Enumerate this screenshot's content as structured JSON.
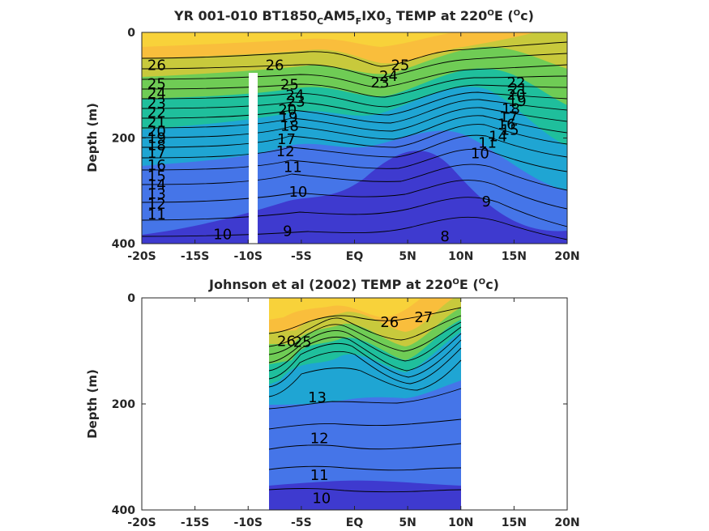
{
  "chart_data": [
    {
      "type": "contour",
      "title_parts": [
        "YR 001-010 BT1850",
        "C",
        "AM5",
        "F",
        "IX0",
        "3",
        " TEMP at 220",
        "O",
        "E (",
        "O",
        "c)"
      ],
      "ylabel": "Depth (m)",
      "xlim": [
        -20,
        20
      ],
      "ylim": [
        0,
        400
      ],
      "x_ticks": [
        -20,
        -15,
        -10,
        -5,
        0,
        5,
        10,
        15,
        20
      ],
      "x_tick_labels": [
        "-20S",
        "-15S",
        "-10S",
        "-5S",
        "EQ",
        "5N",
        "10N",
        "15N",
        "20N"
      ],
      "y_ticks": [
        0,
        200,
        400
      ],
      "y_tick_labels": [
        "0",
        "200",
        "400"
      ],
      "colormap": [
        "#3e3acf",
        "#4575e8",
        "#1fa5d3",
        "#1fbf9c",
        "#6fcc55",
        "#c8c93c",
        "#f9be3c",
        "#f8d23a"
      ],
      "gap_x": -10,
      "gap_depth_range": [
        80,
        400
      ],
      "contour_levels": [
        8,
        9,
        10,
        11,
        12,
        13,
        14,
        15,
        16,
        17,
        18,
        19,
        20,
        21,
        22,
        23,
        24,
        25,
        26
      ],
      "contour_labels": [
        {
          "text": "26",
          "x": -18.6,
          "y": 62
        },
        {
          "text": "25",
          "x": -18.6,
          "y": 97
        },
        {
          "text": "24",
          "x": -18.6,
          "y": 116
        },
        {
          "text": "23",
          "x": -18.6,
          "y": 134
        },
        {
          "text": "22",
          "x": -18.6,
          "y": 152
        },
        {
          "text": "21",
          "x": -18.6,
          "y": 170
        },
        {
          "text": "20",
          "x": -18.6,
          "y": 187
        },
        {
          "text": "19",
          "x": -18.6,
          "y": 200
        },
        {
          "text": "18",
          "x": -18.6,
          "y": 214
        },
        {
          "text": "17",
          "x": -18.6,
          "y": 228
        },
        {
          "text": "16",
          "x": -18.6,
          "y": 251
        },
        {
          "text": "15",
          "x": -18.6,
          "y": 272
        },
        {
          "text": "14",
          "x": -18.6,
          "y": 288
        },
        {
          "text": "13",
          "x": -18.6,
          "y": 306
        },
        {
          "text": "12",
          "x": -18.6,
          "y": 325
        },
        {
          "text": "11",
          "x": -18.6,
          "y": 345
        },
        {
          "text": "10",
          "x": -12.4,
          "y": 382
        },
        {
          "text": "26",
          "x": -7.5,
          "y": 62
        },
        {
          "text": "25",
          "x": -6.1,
          "y": 99
        },
        {
          "text": "24",
          "x": -5.6,
          "y": 119
        },
        {
          "text": "23",
          "x": -5.5,
          "y": 131
        },
        {
          "text": "20",
          "x": -6.3,
          "y": 146
        },
        {
          "text": "19",
          "x": -6.2,
          "y": 161
        },
        {
          "text": "18",
          "x": -6.1,
          "y": 177
        },
        {
          "text": "17",
          "x": -6.4,
          "y": 202
        },
        {
          "text": "12",
          "x": -6.5,
          "y": 225
        },
        {
          "text": "11",
          "x": -5.8,
          "y": 255
        },
        {
          "text": "10",
          "x": -5.3,
          "y": 302
        },
        {
          "text": "9",
          "x": -6.3,
          "y": 376
        },
        {
          "text": "25",
          "x": 4.3,
          "y": 62
        },
        {
          "text": "24",
          "x": 3.2,
          "y": 83
        },
        {
          "text": "23",
          "x": 2.4,
          "y": 95
        },
        {
          "text": "22",
          "x": 15.2,
          "y": 95
        },
        {
          "text": "21",
          "x": 15.4,
          "y": 107
        },
        {
          "text": "20",
          "x": 15.2,
          "y": 118
        },
        {
          "text": "19",
          "x": 15.3,
          "y": 130
        },
        {
          "text": "18",
          "x": 14.7,
          "y": 145
        },
        {
          "text": "17",
          "x": 14.5,
          "y": 160
        },
        {
          "text": "16",
          "x": 14.3,
          "y": 174
        },
        {
          "text": "15",
          "x": 14.6,
          "y": 185
        },
        {
          "text": "14",
          "x": 13.5,
          "y": 197
        },
        {
          "text": "11",
          "x": 12.5,
          "y": 209
        },
        {
          "text": "10",
          "x": 11.8,
          "y": 229
        },
        {
          "text": "9",
          "x": 12.4,
          "y": 320
        },
        {
          "text": "8",
          "x": 8.5,
          "y": 386
        }
      ]
    },
    {
      "type": "contour",
      "title_parts": [
        "Johnson et al (2002) TEMP at 220",
        "O",
        "E (",
        "O",
        "c)"
      ],
      "ylabel": "Depth (m)",
      "xlim": [
        -20,
        20
      ],
      "ylim": [
        0,
        400
      ],
      "x_ticks": [
        -20,
        -15,
        -10,
        -5,
        0,
        5,
        10,
        15,
        20
      ],
      "x_tick_labels": [
        "-20S",
        "-15S",
        "-10S",
        "-5S",
        "EQ",
        "5N",
        "10N",
        "15N",
        "20N"
      ],
      "y_ticks": [
        0,
        200,
        400
      ],
      "y_tick_labels": [
        "0",
        "200",
        "400"
      ],
      "data_xlim": [
        -8,
        10
      ],
      "colormap": [
        "#3e3acf",
        "#4575e8",
        "#1fa5d3",
        "#1fbf9c",
        "#6fcc55",
        "#c8c93c",
        "#f9be3c",
        "#f8d23a"
      ],
      "contour_levels": [
        10,
        11,
        12,
        13,
        14,
        15,
        16,
        17,
        18,
        19,
        20,
        21,
        22,
        23,
        24,
        25,
        26,
        27
      ],
      "contour_labels": [
        {
          "text": "27",
          "x": 6.5,
          "y": 37
        },
        {
          "text": "26",
          "x": 3.3,
          "y": 46
        },
        {
          "text": "26",
          "x": -6.4,
          "y": 82
        },
        {
          "text": "25",
          "x": -4.9,
          "y": 83
        },
        {
          "text": "13",
          "x": -3.5,
          "y": 188
        },
        {
          "text": "12",
          "x": -3.3,
          "y": 265
        },
        {
          "text": "11",
          "x": -3.3,
          "y": 334
        },
        {
          "text": "10",
          "x": -3.1,
          "y": 378
        }
      ]
    }
  ]
}
